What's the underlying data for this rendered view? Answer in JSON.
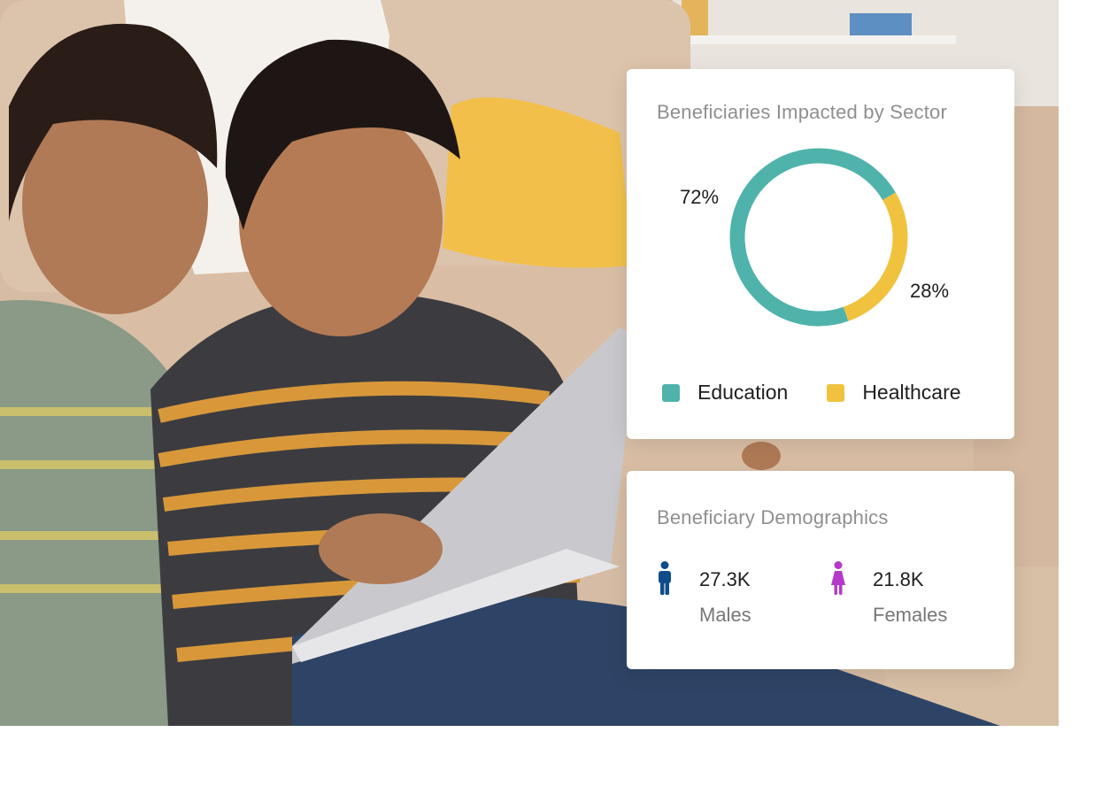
{
  "sector_card": {
    "title": "Beneficiaries Impacted by Sector",
    "legend": [
      {
        "label": "Education",
        "color": "#4fb3ab"
      },
      {
        "label": "Healthcare",
        "color": "#f0c23e"
      }
    ]
  },
  "demographics_card": {
    "title": "Beneficiary Demographics",
    "males": {
      "value": "27.3K",
      "label": "Males",
      "icon": "male-icon",
      "color": "#0e4d8a"
    },
    "females": {
      "value": "21.8K",
      "label": "Females",
      "icon": "female-icon",
      "color": "#b53ac9"
    }
  },
  "chart_data": {
    "type": "pie",
    "title": "Beneficiaries Impacted by Sector",
    "categories": [
      "Education",
      "Healthcare"
    ],
    "values": [
      72,
      28
    ],
    "value_labels": [
      "72%",
      "28%"
    ],
    "colors": [
      "#4fb3ab",
      "#f0c23e"
    ],
    "donut": true,
    "legend": "bottom"
  }
}
